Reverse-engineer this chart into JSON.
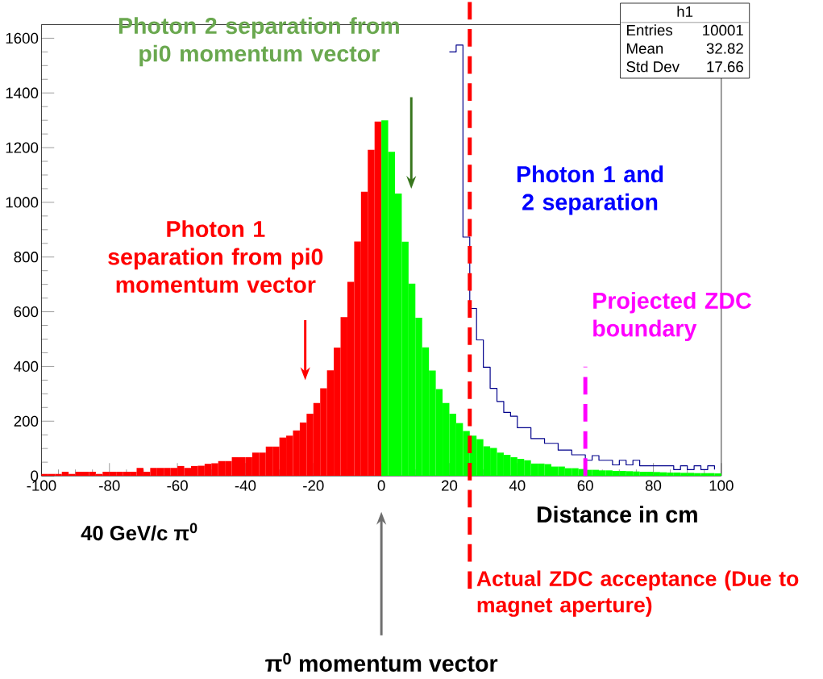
{
  "chart_data": {
    "type": "histogram",
    "xlabel": "Distance in cm",
    "xlim": [
      -100,
      100
    ],
    "ylim": [
      0,
      1650
    ],
    "xticks": [
      -100,
      -80,
      -60,
      -40,
      -20,
      0,
      20,
      40,
      60,
      80,
      100
    ],
    "yticks": [
      0,
      200,
      400,
      600,
      800,
      1000,
      1200,
      1400,
      1600
    ],
    "bins": [
      -100,
      -98,
      -96,
      -94,
      -92,
      -90,
      -88,
      -86,
      -84,
      -82,
      -80,
      -78,
      -76,
      -74,
      -72,
      -70,
      -68,
      -66,
      -64,
      -62,
      -60,
      -58,
      -56,
      -54,
      -52,
      -50,
      -48,
      -46,
      -44,
      -42,
      -40,
      -38,
      -36,
      -34,
      -32,
      -30,
      -28,
      -26,
      -24,
      -22,
      -20,
      -18,
      -16,
      -14,
      -12,
      -10,
      -8,
      -6,
      -4,
      -2,
      0,
      2,
      4,
      6,
      8,
      10,
      12,
      14,
      16,
      18,
      20,
      22,
      24,
      26,
      28,
      30,
      32,
      34,
      36,
      38,
      40,
      42,
      44,
      46,
      48,
      50,
      52,
      54,
      56,
      58,
      60,
      62,
      64,
      66,
      68,
      70,
      72,
      74,
      76,
      78,
      80,
      82,
      84,
      86,
      88,
      90,
      92,
      94,
      96,
      98,
      100
    ],
    "series": [
      {
        "name": "Photon 1 separation from pi0 momentum vector",
        "color": "#ff0000",
        "values": [
          7,
          7,
          7,
          15,
          7,
          15,
          15,
          15,
          7,
          15,
          15,
          15,
          15,
          15,
          29,
          15,
          29,
          29,
          29,
          29,
          36,
          29,
          36,
          37,
          44,
          46,
          54,
          54,
          68,
          68,
          68,
          85,
          85,
          107,
          107,
          140,
          147,
          166,
          195,
          227,
          266,
          320,
          386,
          469,
          580,
          709,
          857,
          1039,
          1192,
          1295,
          null,
          null,
          null,
          null,
          null,
          null,
          null,
          null,
          null,
          null,
          null,
          null,
          null,
          null,
          null,
          null,
          null,
          null,
          null,
          null,
          null,
          null,
          null,
          null,
          null,
          null,
          null,
          null,
          null,
          null,
          null,
          null,
          null,
          null,
          null,
          null,
          null,
          null,
          null,
          null,
          null,
          null,
          null,
          null,
          null,
          null,
          null,
          null,
          null,
          null
        ]
      },
      {
        "name": "Photon 2 separation from pi0 momentum vector",
        "color": "#00ff00",
        "values": [
          null,
          null,
          null,
          null,
          null,
          null,
          null,
          null,
          null,
          null,
          null,
          null,
          null,
          null,
          null,
          null,
          null,
          null,
          null,
          null,
          null,
          null,
          null,
          null,
          null,
          null,
          null,
          null,
          null,
          null,
          null,
          null,
          null,
          null,
          null,
          null,
          null,
          null,
          null,
          null,
          null,
          null,
          null,
          null,
          null,
          null,
          null,
          null,
          null,
          null,
          1300,
          1185,
          1032,
          856,
          703,
          578,
          470,
          385,
          317,
          266,
          227,
          193,
          164,
          147,
          134,
          108,
          102,
          85,
          77,
          68,
          62,
          57,
          45,
          45,
          43,
          34,
          34,
          28,
          28,
          25,
          22,
          22,
          20,
          20,
          18,
          18,
          17,
          16,
          15,
          15,
          14,
          13,
          12,
          12,
          11,
          11,
          10,
          10,
          10,
          9
        ]
      },
      {
        "name": "Photon 1 and 2 separation",
        "type": "step",
        "color": "#00008b",
        "x": [
          20,
          22,
          24,
          26,
          28,
          30,
          32,
          34,
          36,
          38,
          40,
          42,
          44,
          46,
          48,
          50,
          52,
          54,
          56,
          58,
          60,
          62,
          64,
          66,
          68,
          70,
          72,
          74,
          76,
          78,
          80,
          82,
          84,
          86,
          88,
          90,
          92,
          94,
          96,
          98
        ],
        "values": [
          1550,
          1575,
          873,
          612,
          497,
          397,
          320,
          272,
          232,
          218,
          176,
          176,
          136,
          136,
          119,
          119,
          94,
          94,
          77,
          77,
          57,
          74,
          57,
          57,
          40,
          57,
          40,
          57,
          37,
          37,
          37,
          37,
          37,
          23,
          37,
          23,
          37,
          23,
          37,
          23
        ]
      }
    ],
    "ref_lines": [
      {
        "axis": "x",
        "value": 26,
        "label": "Actual ZDC acceptance (Due to magnet aperture)",
        "color": "#ff0000",
        "line_style": "dashed"
      },
      {
        "axis": "x",
        "value": 60,
        "label": "Projected ZDC boundary",
        "color": "#ff00ff",
        "line_style": "dashed"
      }
    ],
    "annotations": [
      "40 GeV/c π$^{0}$",
      "π$^{0}$ momentum vector",
      "h1",
      "Entries",
      "10001",
      "Mean",
      "32.82",
      "Std Dev",
      "17.66"
    ]
  }
}
